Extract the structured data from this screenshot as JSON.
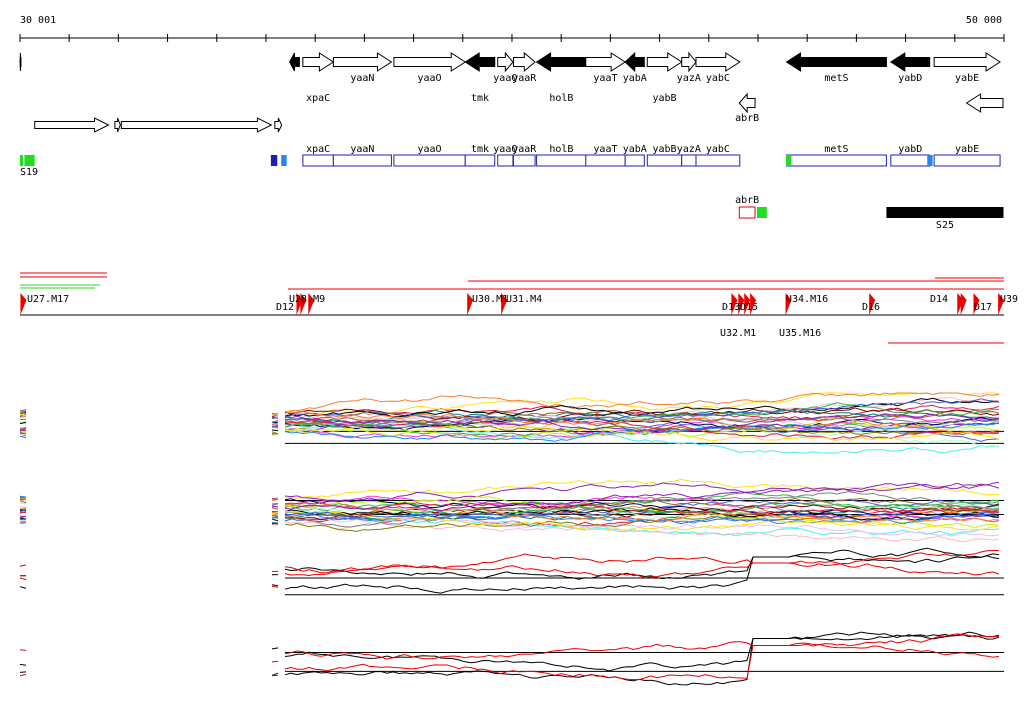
{
  "ruler": {
    "start_label": "30 001",
    "end_label": "50 000",
    "start": 30001,
    "end": 50000
  },
  "colors": {
    "forward_gene": "#ffffff",
    "reverse_gene": "#000000",
    "track_blue": "#1f1fb5",
    "marker_green": "#22dd22",
    "marker_red": "#ee0000",
    "line_black": "#000000"
  },
  "genes": [
    {
      "name": "",
      "start": 30001,
      "end": 30020,
      "strand": "-",
      "row": 0
    },
    {
      "name": "",
      "start": 30300,
      "end": 31800,
      "strand": "+",
      "row": 2
    },
    {
      "name": "",
      "start": 31930,
      "end": 32040,
      "strand": "+",
      "row": 2
    },
    {
      "name": "",
      "start": 32060,
      "end": 35110,
      "strand": "+",
      "row": 2
    },
    {
      "name": "",
      "start": 35180,
      "end": 35320,
      "strand": "+",
      "row": 2
    },
    {
      "name": "",
      "start": 35480,
      "end": 35680,
      "strand": "-",
      "row": 0
    },
    {
      "name": "xpaC",
      "start": 35750,
      "end": 36370,
      "strand": "+",
      "row": 0
    },
    {
      "name": "yaaN",
      "start": 36370,
      "end": 37550,
      "strand": "+",
      "row": 0
    },
    {
      "name": "yaaO",
      "start": 37600,
      "end": 39050,
      "strand": "+",
      "row": 0
    },
    {
      "name": "tmk",
      "start": 39050,
      "end": 39650,
      "strand": "-",
      "row": 0
    },
    {
      "name": "yaaQ",
      "start": 39710,
      "end": 40020,
      "strand": "+",
      "row": 0
    },
    {
      "name": "yaaR",
      "start": 40030,
      "end": 40470,
      "strand": "+",
      "row": 0
    },
    {
      "name": "holB",
      "start": 40500,
      "end": 41510,
      "strand": "-",
      "row": 0
    },
    {
      "name": "yaaT",
      "start": 41500,
      "end": 42300,
      "strand": "+",
      "row": 0
    },
    {
      "name": "yabA",
      "start": 42300,
      "end": 42690,
      "strand": "-",
      "row": 0
    },
    {
      "name": "yabB",
      "start": 42750,
      "end": 43450,
      "strand": "+",
      "row": 0
    },
    {
      "name": "yazA",
      "start": 43450,
      "end": 43740,
      "strand": "+",
      "row": 0
    },
    {
      "name": "yabC",
      "start": 43740,
      "end": 44630,
      "strand": "+",
      "row": 0
    },
    {
      "name": "abrB",
      "start": 44620,
      "end": 44940,
      "strand": "-",
      "row": 1
    },
    {
      "name": "metS",
      "start": 45580,
      "end": 47610,
      "strand": "-",
      "row": 0
    },
    {
      "name": "yabD",
      "start": 47700,
      "end": 48490,
      "strand": "-",
      "row": 0
    },
    {
      "name": "yabE",
      "start": 48580,
      "end": 49920,
      "strand": "+",
      "row": 0
    },
    {
      "name": "",
      "start": 49240,
      "end": 49980,
      "strand": "-",
      "row": 1
    }
  ],
  "annotation_track": {
    "boxes": [
      {
        "label": "xpaC",
        "start": 35750,
        "end": 36370
      },
      {
        "label": "yaaN",
        "start": 36370,
        "end": 37550
      },
      {
        "label": "yaaO",
        "start": 37600,
        "end": 39050
      },
      {
        "label": "tmk",
        "start": 39050,
        "end": 39650
      },
      {
        "label": "yaaQ",
        "start": 39710,
        "end": 40020
      },
      {
        "label": "yaaR",
        "start": 40030,
        "end": 40470
      },
      {
        "label": "holB",
        "start": 40500,
        "end": 41510
      },
      {
        "label": "yaaT",
        "start": 41500,
        "end": 42300
      },
      {
        "label": "yabA",
        "start": 42300,
        "end": 42690
      },
      {
        "label": "yabB",
        "start": 42750,
        "end": 43450
      },
      {
        "label": "yazA",
        "start": 43450,
        "end": 43740
      },
      {
        "label": "yabC",
        "start": 43740,
        "end": 44630
      },
      {
        "label": "metS",
        "start": 45580,
        "end": 47610
      },
      {
        "label": "yabD",
        "start": 47700,
        "end": 48490
      },
      {
        "label": "yabE",
        "start": 48580,
        "end": 49920
      },
      {
        "label": "abrB",
        "start": 44620,
        "end": 44940,
        "row": 1,
        "color": "#ee0000"
      }
    ],
    "markers": [
      {
        "start": 30001,
        "end": 30040,
        "color": "#22dd22"
      },
      {
        "start": 30090,
        "end": 30300,
        "color": "#22dd22"
      },
      {
        "start": 35100,
        "end": 35230,
        "color": "#1f1fb5"
      },
      {
        "start": 35310,
        "end": 35420,
        "color": "#2288ee"
      },
      {
        "start": 44980,
        "end": 45180,
        "color": "#22dd22",
        "row": 1
      },
      {
        "start": 45570,
        "end": 45680,
        "color": "#22dd22"
      },
      {
        "start": 48440,
        "end": 48550,
        "color": "#2288ee"
      }
    ],
    "labels": {
      "s19": "S19",
      "s25": "S25"
    },
    "s25_block": {
      "start": 47610,
      "end": 49990
    }
  },
  "segments": {
    "labels": [
      "U27.M17",
      "D12",
      "U28.M9",
      "U30.M1",
      "U31.M4",
      "D13",
      "D15",
      "U34.M16",
      "D16",
      "D14",
      "D17",
      "U39",
      "U35.M16",
      "U32.M1"
    ],
    "ticks": [
      30010,
      35620,
      35700,
      35860,
      39090,
      39780,
      44460,
      44600,
      44720,
      44840,
      45560,
      47260,
      49050,
      49120,
      49380,
      49880
    ]
  },
  "profiles": {
    "panel1": {
      "ref_lines": [
        0.64,
        0.84
      ],
      "series_count": 40
    },
    "panel2": {
      "ref_lines": [
        0.35,
        0.55
      ],
      "series_count": 40
    },
    "panel3": {
      "ref_lines": [
        0.5,
        0.78
      ]
    },
    "panel4": {
      "ref_lines": [
        0.35,
        0.62
      ]
    }
  }
}
